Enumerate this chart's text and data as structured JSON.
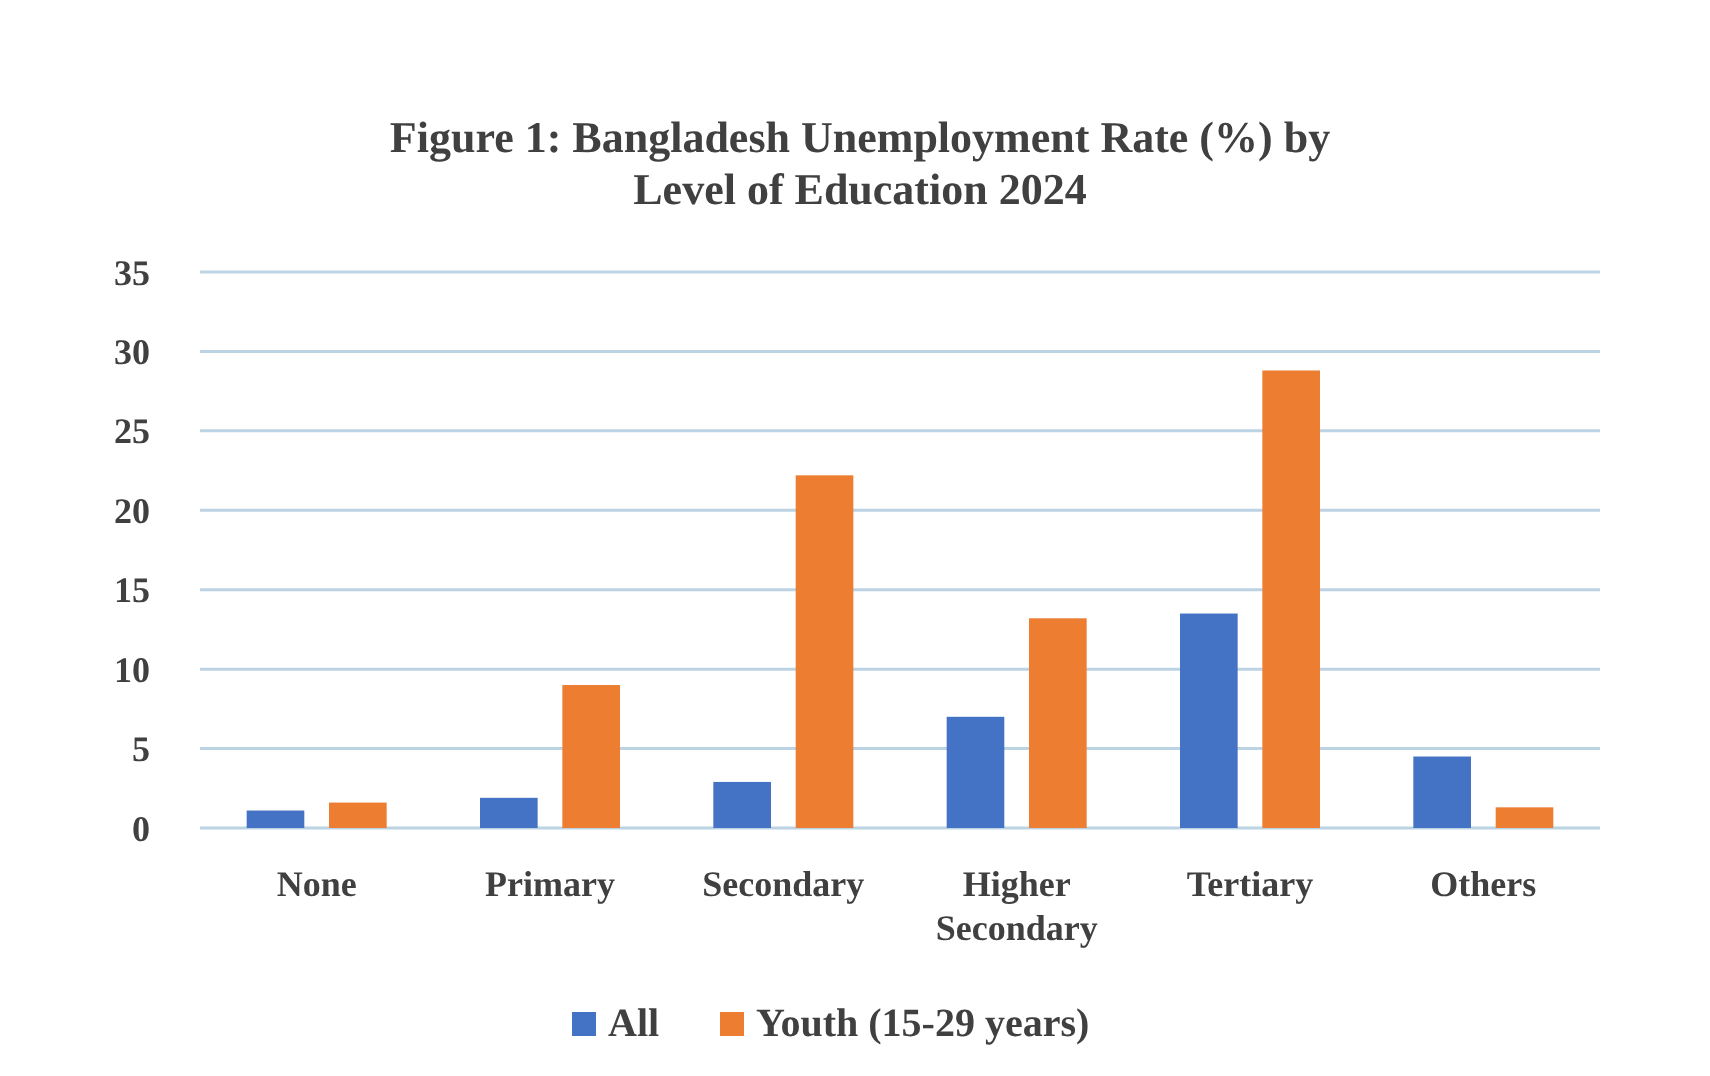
{
  "chart_data": {
    "type": "bar",
    "title": "Figure 1: Bangladesh Unemployment Rate (%) by Level of Education 2024",
    "categories": [
      "None",
      "Primary",
      "Secondary",
      "Higher Secondary",
      "Tertiary",
      "Others"
    ],
    "series": [
      {
        "name": "All",
        "color": "#4472c4",
        "values": [
          1.1,
          1.9,
          2.9,
          7.0,
          13.5,
          4.5
        ]
      },
      {
        "name": "Youth (15-29 years)",
        "color": "#ed7d31",
        "values": [
          1.6,
          9.0,
          22.2,
          13.2,
          28.8,
          1.3
        ]
      }
    ],
    "ylim": [
      0,
      35
    ],
    "yticks": [
      0,
      5,
      10,
      15,
      20,
      25,
      30,
      35
    ],
    "grid": "y",
    "legend": "bottom"
  }
}
